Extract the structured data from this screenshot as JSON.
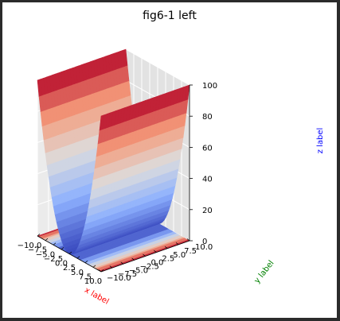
{
  "chart_data": {
    "type": "surface3d",
    "title": "fig6-1 left",
    "function": "z = x^2",
    "xlabel": "x label",
    "ylabel": "y label",
    "zlabel": "z label",
    "xlabel_color": "#ff0000",
    "ylabel_color": "#008000",
    "zlabel_color": "#0000ff",
    "xlim": [
      -10,
      10
    ],
    "ylim": [
      -10,
      10
    ],
    "zlim": [
      0,
      100
    ],
    "x_ticks": [
      -10.0,
      -7.5,
      -5.0,
      -2.5,
      0.0,
      2.5,
      5.0,
      7.5,
      10.0
    ],
    "y_ticks": [
      -10.0,
      -7.5,
      -5.0,
      -2.5,
      0.0,
      2.5,
      5.0,
      7.5,
      10.0
    ],
    "z_ticks": [
      0,
      20,
      40,
      60,
      80,
      100
    ],
    "x_tick_labels": [
      "−10.0",
      "−7.5",
      "−5.0",
      "−2.5",
      "0.0",
      "2.5",
      "5.0",
      "7.5",
      "10.0"
    ],
    "y_tick_labels": [
      "−10.0",
      "−7.5",
      "−5.0",
      "−2.5",
      "0.0",
      "2.5",
      "5.0",
      "7.5",
      "10.0"
    ],
    "z_tick_labels": [
      "0",
      "20",
      "40",
      "60",
      "80",
      "100"
    ],
    "colormap": "coolwarm",
    "contour_projection": "filled contours projected on the z floor",
    "grid": true
  }
}
